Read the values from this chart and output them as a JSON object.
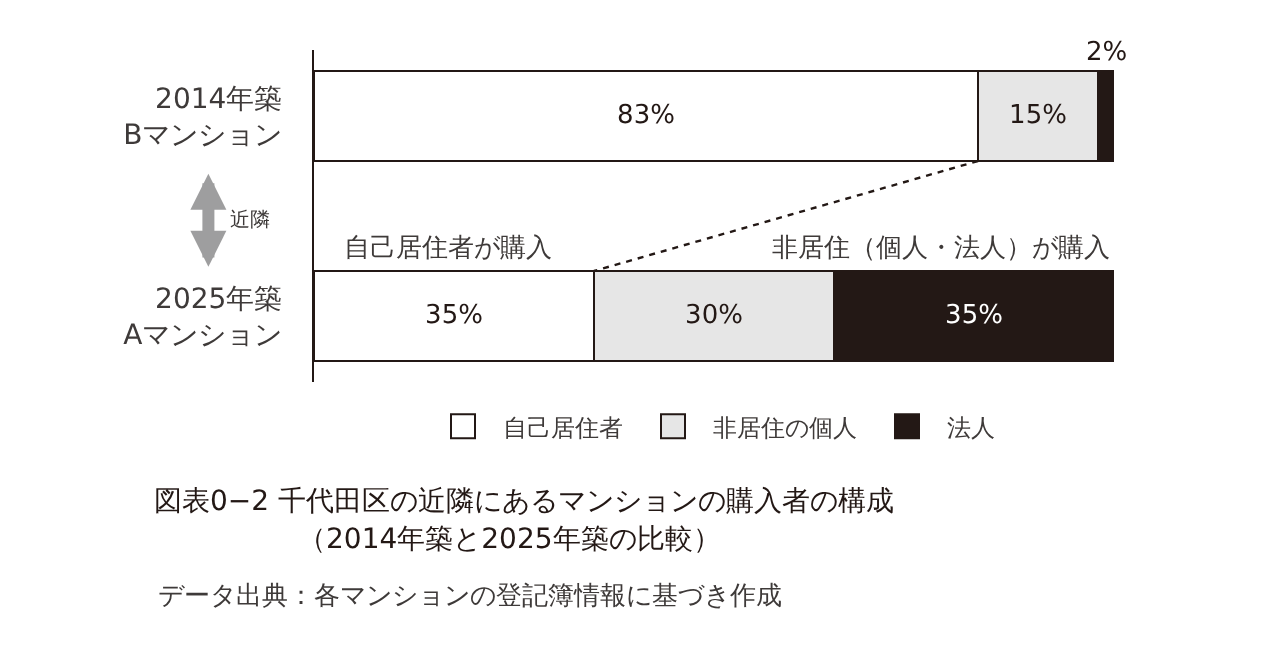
{
  "chart_data": {
    "type": "bar",
    "orientation": "horizontal",
    "stacked": true,
    "title": "図表0−2 千代田区の近隣にあるマンションの購入者の構成",
    "subtitle": "（2014年築と2025年築の比較）",
    "categories": [
      "2014年築\nBマンション",
      "2025年築\nAマンション"
    ],
    "series": [
      {
        "name": "自己居住者",
        "color": "#ffffff",
        "values": [
          83,
          35
        ],
        "value_labels": [
          "83%",
          "35%"
        ]
      },
      {
        "name": "非居住の個人",
        "color": "#e6e6e6",
        "values": [
          15,
          30
        ],
        "value_labels": [
          "15%",
          "30%"
        ]
      },
      {
        "name": "法人",
        "color": "#231815",
        "values": [
          2,
          35
        ],
        "value_labels": [
          "2%",
          "35%"
        ]
      }
    ],
    "tick_labels": "y",
    "legend": "bottom",
    "annotations": [
      "自己居住者が購入",
      "非居住（個人・法人）が購入",
      "近隣",
      "データ出典：各マンションの登記簿情報に基づき作成"
    ]
  }
}
